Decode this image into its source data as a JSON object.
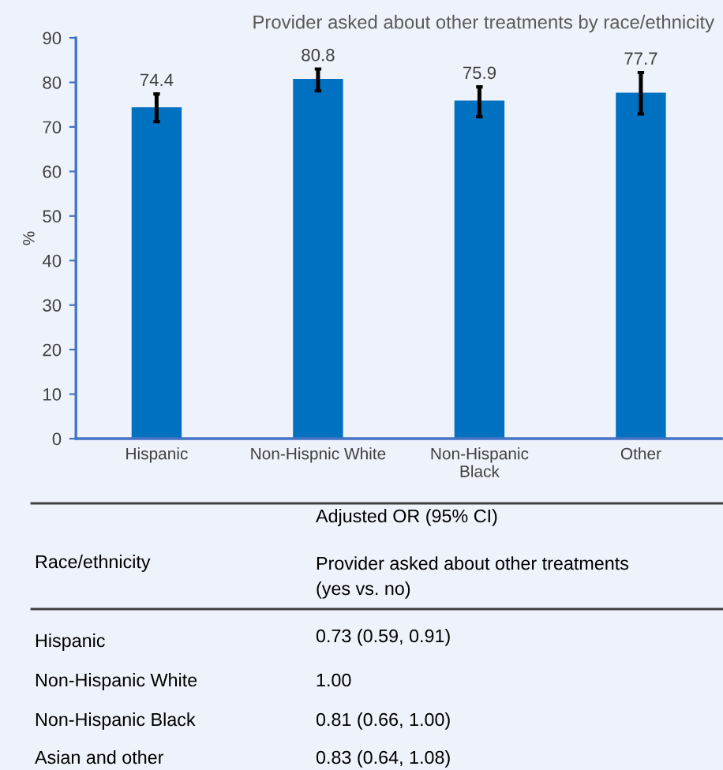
{
  "chart_data": {
    "type": "bar",
    "title": "Provider asked about other treatments by race/ethnicity",
    "ylabel": "%",
    "categories": [
      "Hispanic",
      "Non-Hispnic White",
      "Non-Hispanic\nBlack",
      "Other"
    ],
    "values": [
      74.4,
      80.8,
      75.9,
      77.7
    ],
    "errors": [
      [
        71.2,
        77.4
      ],
      [
        78.1,
        83.0
      ],
      [
        72.3,
        79.0
      ],
      [
        72.9,
        82.2
      ]
    ],
    "color": "#0070c0",
    "data_labels": true,
    "ylim": [
      0,
      90
    ],
    "yticks": [
      0,
      10,
      20,
      30,
      40,
      50,
      60,
      70,
      80,
      90
    ],
    "grid": false,
    "legend": false,
    "annotations": [
      "Adjusted OR (95% CI)",
      "Race/ethnicity",
      "Provider asked about other treatments\n(yes vs. no)",
      "Hispanic",
      "0.73 (0.59, 0.91)",
      "Non-Hispanic White",
      "1.00",
      "Non-Hispanic Black",
      "0.81 (0.66, 1.00)",
      "Asian and other",
      "0.83 (0.64, 1.08)"
    ]
  }
}
